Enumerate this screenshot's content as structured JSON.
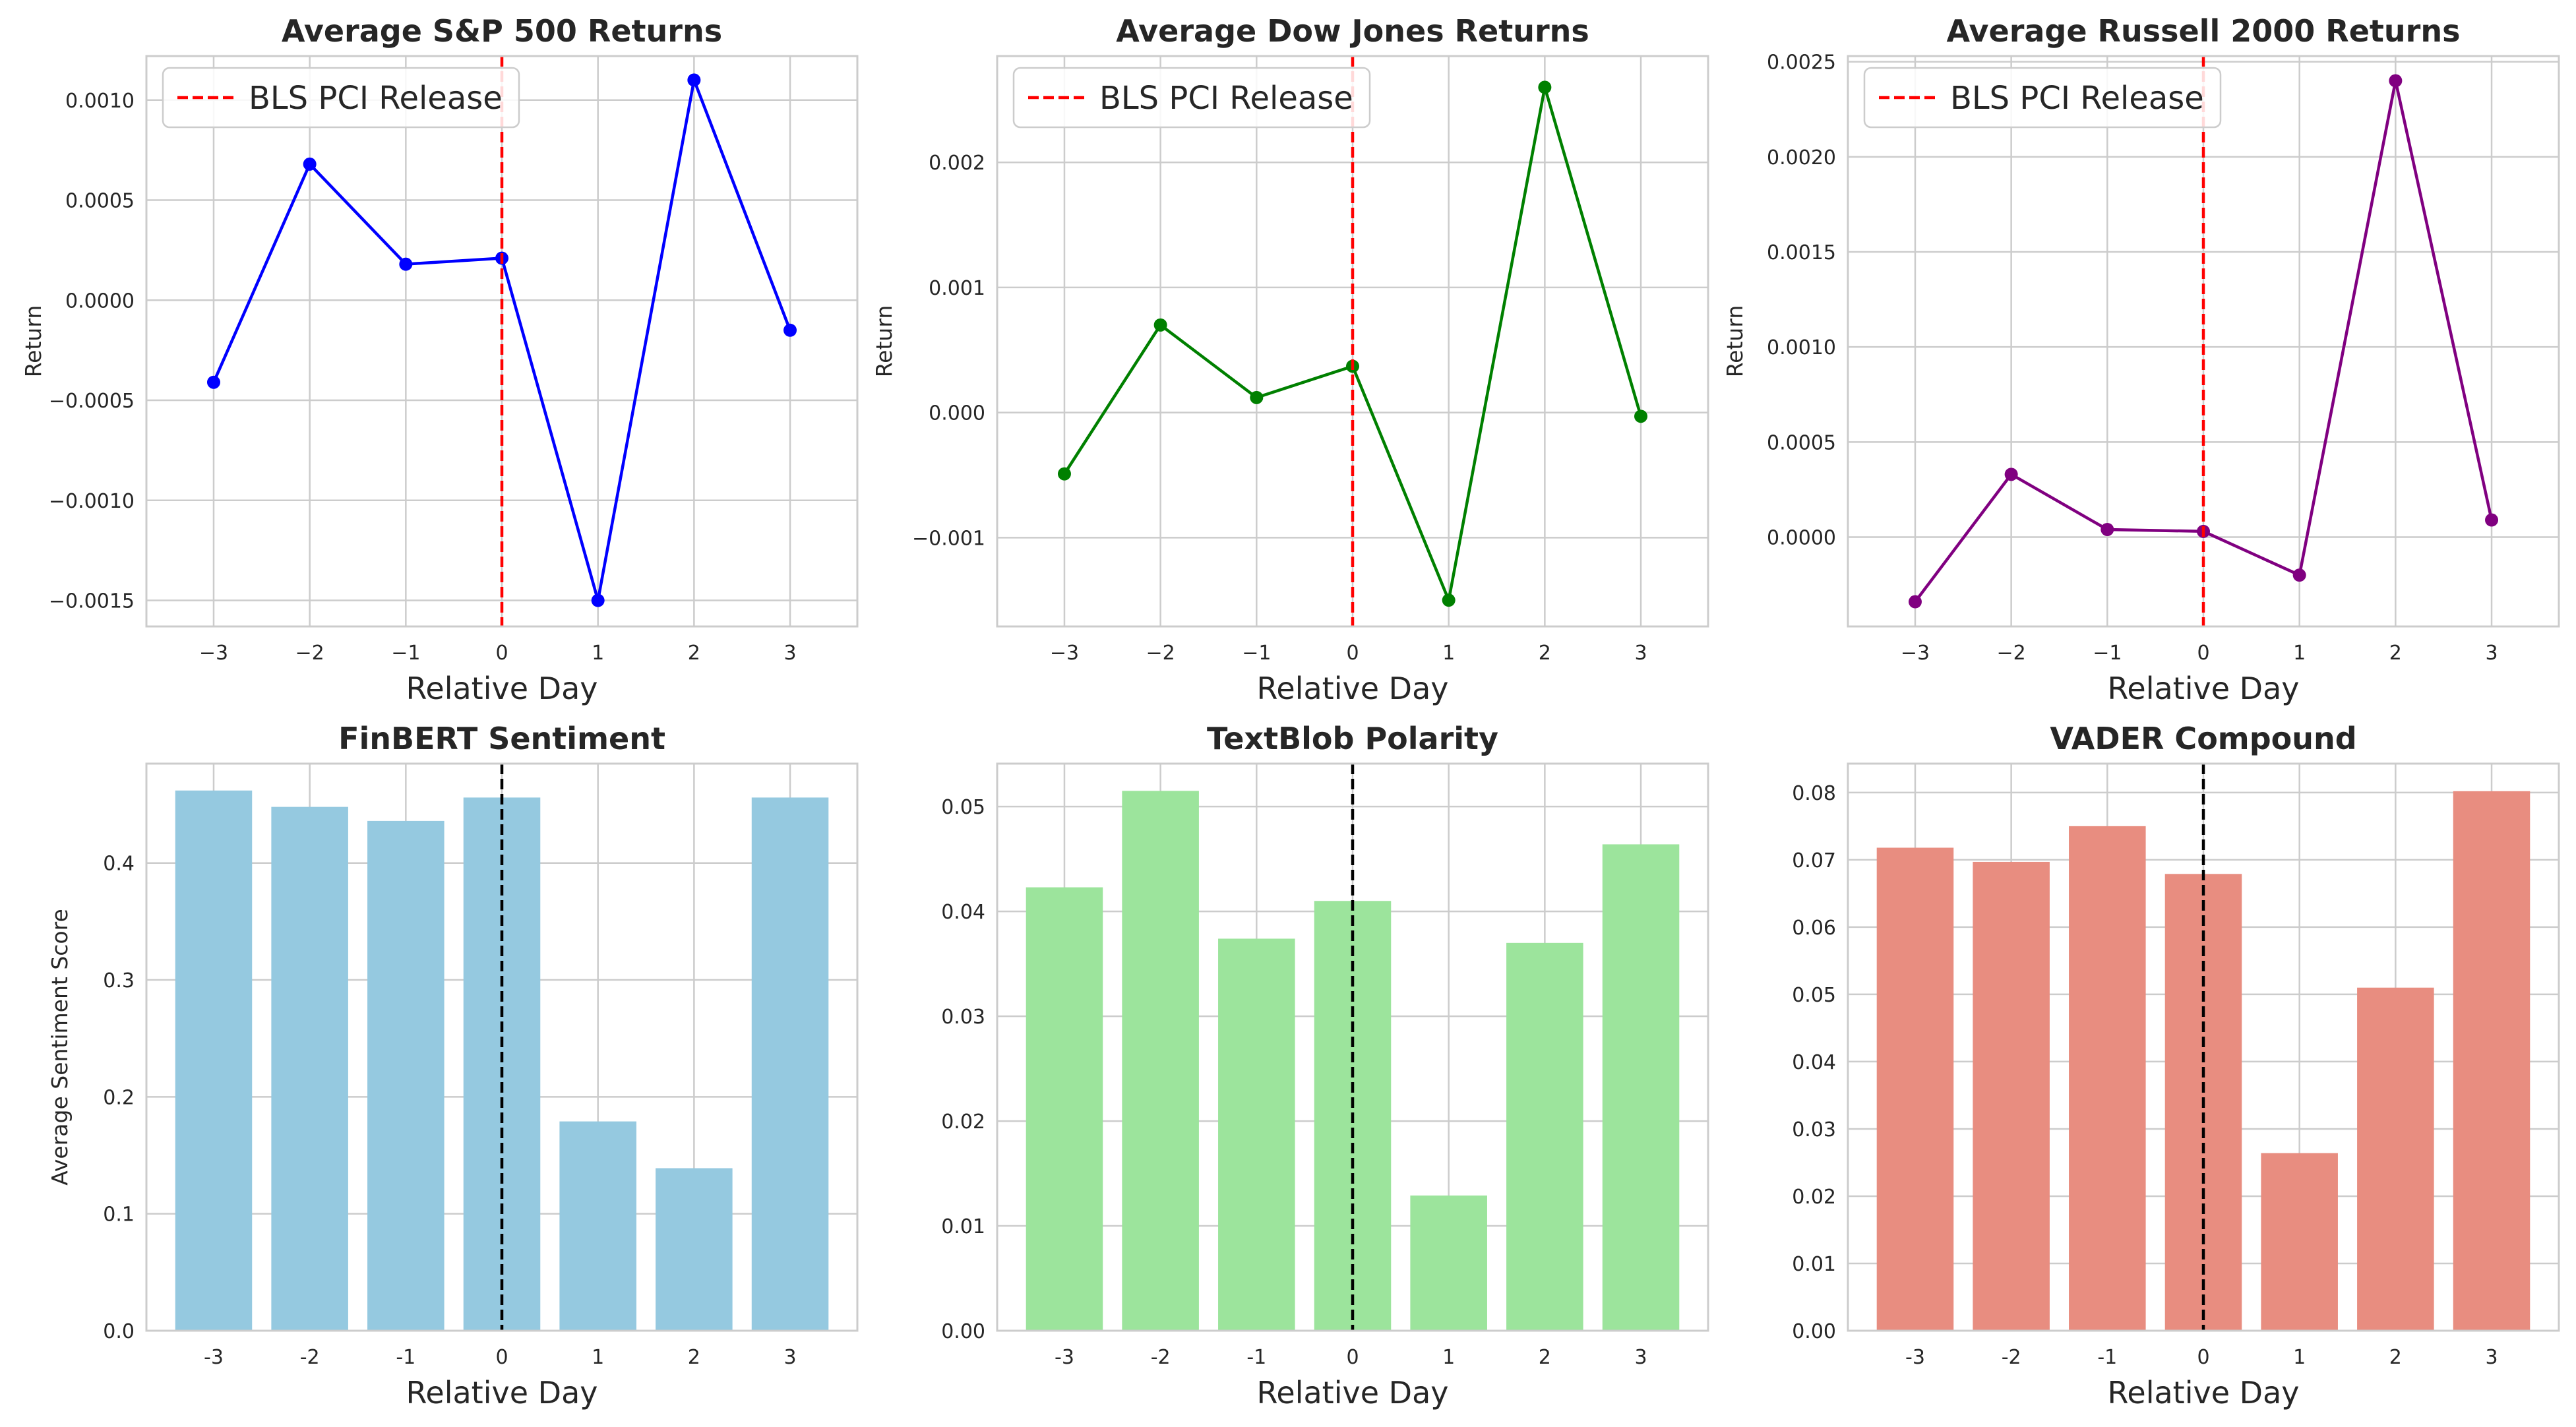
{
  "chart_data": [
    {
      "type": "line",
      "title": "Average S&P 500 Returns",
      "xlabel": "Relative Day",
      "ylabel": "Return",
      "x": [
        -3,
        -2,
        -1,
        0,
        1,
        2,
        3
      ],
      "xticklabels": [
        "−3",
        "−2",
        "−1",
        "0",
        "1",
        "2",
        "3"
      ],
      "values": [
        -0.00041,
        0.00068,
        0.00018,
        0.00021,
        -0.0015,
        0.0011,
        -0.00015
      ],
      "ylim": [
        -0.00163,
        0.00122
      ],
      "yticks": [
        -0.0015,
        -0.001,
        -0.0005,
        0.0,
        0.0005,
        0.001
      ],
      "yticklabels": [
        "−0.0015",
        "−0.0010",
        "−0.0005",
        "0.0000",
        "0.0005",
        "0.0010"
      ],
      "color": "#0000ff",
      "vline": {
        "x": 0,
        "color": "#ff0000",
        "label": "BLS PCI Release"
      },
      "legend": "upper-left"
    },
    {
      "type": "line",
      "title": "Average Dow Jones Returns",
      "xlabel": "Relative Day",
      "ylabel": "Return",
      "x": [
        -3,
        -2,
        -1,
        0,
        1,
        2,
        3
      ],
      "xticklabels": [
        "−3",
        "−2",
        "−1",
        "0",
        "1",
        "2",
        "3"
      ],
      "values": [
        -0.00049,
        0.0007,
        0.00012,
        0.00037,
        -0.0015,
        0.0026,
        -3e-05
      ],
      "ylim": [
        -0.00171,
        0.00285
      ],
      "yticks": [
        -0.001,
        0.0,
        0.001,
        0.002
      ],
      "yticklabels": [
        "−0.001",
        "0.000",
        "0.001",
        "0.002"
      ],
      "color": "#008000",
      "vline": {
        "x": 0,
        "color": "#ff0000",
        "label": "BLS PCI Release"
      },
      "legend": "upper-left"
    },
    {
      "type": "line",
      "title": "Average Russell 2000 Returns",
      "xlabel": "Relative Day",
      "ylabel": "Return",
      "x": [
        -3,
        -2,
        -1,
        0,
        1,
        2,
        3
      ],
      "xticklabels": [
        "−3",
        "−2",
        "−1",
        "0",
        "1",
        "2",
        "3"
      ],
      "values": [
        -0.00034,
        0.00033,
        4e-05,
        3e-05,
        -0.0002,
        0.0024,
        9e-05
      ],
      "ylim": [
        -0.00047,
        0.00253
      ],
      "yticks": [
        0.0,
        0.0005,
        0.001,
        0.0015,
        0.002,
        0.0025
      ],
      "yticklabels": [
        "0.0000",
        "0.0005",
        "0.0010",
        "0.0015",
        "0.0020",
        "0.0025"
      ],
      "color": "#800080",
      "vline": {
        "x": 0,
        "color": "#ff0000",
        "label": "BLS PCI Release"
      },
      "legend": "upper-left"
    },
    {
      "type": "bar",
      "title": "FinBERT Sentiment",
      "xlabel": "Relative Day",
      "ylabel": "Average Sentiment Score",
      "categories": [
        "-3",
        "-2",
        "-1",
        "0",
        "1",
        "2",
        "3"
      ],
      "values": [
        0.462,
        0.448,
        0.436,
        0.456,
        0.179,
        0.139,
        0.456
      ],
      "ylim": [
        0,
        0.485
      ],
      "yticks": [
        0.0,
        0.1,
        0.2,
        0.3,
        0.4
      ],
      "yticklabels": [
        "0.0",
        "0.1",
        "0.2",
        "0.3",
        "0.4"
      ],
      "color": "#95c9e0",
      "vline": {
        "x": 0,
        "color": "#000000"
      }
    },
    {
      "type": "bar",
      "title": "TextBlob Polarity",
      "xlabel": "Relative Day",
      "ylabel": "",
      "categories": [
        "-3",
        "-2",
        "-1",
        "0",
        "1",
        "2",
        "3"
      ],
      "values": [
        0.0423,
        0.0515,
        0.0374,
        0.041,
        0.0129,
        0.037,
        0.0464
      ],
      "ylim": [
        0,
        0.0541
      ],
      "yticks": [
        0.0,
        0.01,
        0.02,
        0.03,
        0.04,
        0.05
      ],
      "yticklabels": [
        "0.00",
        "0.01",
        "0.02",
        "0.03",
        "0.04",
        "0.05"
      ],
      "color": "#9ce49c",
      "vline": {
        "x": 0,
        "color": "#000000"
      }
    },
    {
      "type": "bar",
      "title": "VADER Compound",
      "xlabel": "Relative Day",
      "ylabel": "",
      "categories": [
        "-3",
        "-2",
        "-1",
        "0",
        "1",
        "2",
        "3"
      ],
      "values": [
        0.0718,
        0.0697,
        0.075,
        0.0679,
        0.0264,
        0.051,
        0.0802
      ],
      "ylim": [
        0,
        0.0843
      ],
      "yticks": [
        0.0,
        0.01,
        0.02,
        0.03,
        0.04,
        0.05,
        0.06,
        0.07,
        0.08
      ],
      "yticklabels": [
        "0.00",
        "0.01",
        "0.02",
        "0.03",
        "0.04",
        "0.05",
        "0.06",
        "0.07",
        "0.08"
      ],
      "color": "#e88d80",
      "vline": {
        "x": 0,
        "color": "#000000"
      }
    }
  ]
}
